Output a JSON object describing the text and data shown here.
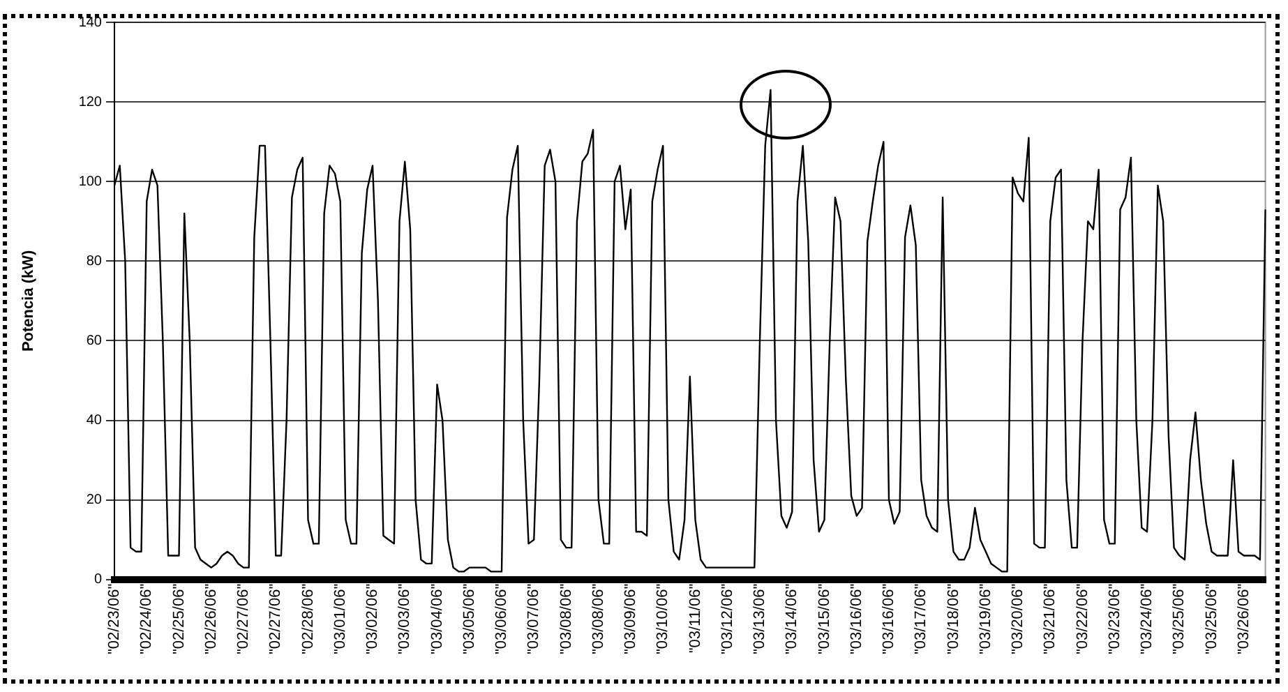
{
  "chart_data": {
    "type": "line",
    "ylabel": "Potencia (kW)",
    "categories": [
      "\"02/23/06\"",
      null,
      null,
      null,
      null,
      null,
      "\"02/24/06\"",
      null,
      null,
      null,
      null,
      null,
      "\"02/25/06\"",
      null,
      null,
      null,
      null,
      null,
      "\"02/26/06\"",
      null,
      null,
      null,
      null,
      null,
      "\"02/27/06\"",
      null,
      null,
      null,
      null,
      null,
      "\"02/27/06\"",
      null,
      null,
      null,
      null,
      null,
      "\"02/28/06\"",
      null,
      null,
      null,
      null,
      null,
      "\"03/01/06\"",
      null,
      null,
      null,
      null,
      null,
      "\"03/02/06\"",
      null,
      null,
      null,
      null,
      null,
      "\"03/03/06\"",
      null,
      null,
      null,
      null,
      null,
      "\"03/04/06\"",
      null,
      null,
      null,
      null,
      null,
      "\"03/05/06\"",
      null,
      null,
      null,
      null,
      null,
      "\"03/06/06\"",
      null,
      null,
      null,
      null,
      null,
      "\"03/07/06\"",
      null,
      null,
      null,
      null,
      null,
      "\"03/08/06\"",
      null,
      null,
      null,
      null,
      null,
      "\"03/08/06\"",
      null,
      null,
      null,
      null,
      null,
      "\"03/09/06\"",
      null,
      null,
      null,
      null,
      null,
      "\"03/10/06\"",
      null,
      null,
      null,
      null,
      null,
      "\"03/11/06\"",
      null,
      null,
      null,
      null,
      null,
      "\"03/12/06\"",
      null,
      null,
      null,
      null,
      null,
      "\"03/13/06\"",
      null,
      null,
      null,
      null,
      null,
      "\"03/14/06\"",
      null,
      null,
      null,
      null,
      null,
      "\"03/15/06\"",
      null,
      null,
      null,
      null,
      null,
      "\"03/16/06\"",
      null,
      null,
      null,
      null,
      null,
      "\"03/16/06\"",
      null,
      null,
      null,
      null,
      null,
      "\"03/17/06\"",
      null,
      null,
      null,
      null,
      null,
      "\"03/18/06\"",
      null,
      null,
      null,
      null,
      null,
      "\"03/19/06\"",
      null,
      null,
      null,
      null,
      null,
      "\"03/20/06\"",
      null,
      null,
      null,
      null,
      null,
      "\"03/21/06\"",
      null,
      null,
      null,
      null,
      null,
      "\"03/22/06\"",
      null,
      null,
      null,
      null,
      null,
      "\"03/23/06\"",
      null,
      null,
      null,
      null,
      null,
      "\"03/24/06\"",
      null,
      null,
      null,
      null,
      null,
      "\"03/25/06\"",
      null,
      null,
      null,
      null,
      null,
      "\"03/25/06\"",
      null,
      null,
      null,
      null,
      null,
      "\"03/26/06\"",
      null,
      null,
      null,
      null
    ],
    "ylim": [
      0,
      140
    ],
    "yticks": [
      0,
      20,
      40,
      60,
      80,
      100,
      120,
      140
    ],
    "grid": "y",
    "legend": false,
    "marker": "none",
    "line_style": "solid",
    "series": [
      {
        "color": "#000000",
        "values": [
          99,
          104,
          80,
          8,
          7,
          7,
          95,
          103,
          99,
          60,
          6,
          6,
          6,
          92,
          60,
          8,
          5,
          4,
          3,
          4,
          6,
          7,
          6,
          4,
          3,
          3,
          86,
          109,
          109,
          60,
          6,
          6,
          40,
          96,
          103,
          106,
          15,
          9,
          9,
          92,
          104,
          102,
          95,
          15,
          9,
          9,
          82,
          98,
          104,
          70,
          11,
          10,
          9,
          90,
          105,
          88,
          20,
          5,
          4,
          4,
          49,
          40,
          10,
          3,
          2,
          2,
          3,
          3,
          3,
          3,
          2,
          2,
          2,
          91,
          103,
          109,
          40,
          9,
          10,
          50,
          104,
          108,
          100,
          10,
          8,
          8,
          90,
          105,
          107,
          113,
          20,
          9,
          9,
          100,
          104,
          88,
          98,
          12,
          12,
          11,
          95,
          103,
          109,
          20,
          7,
          5,
          15,
          51,
          15,
          5,
          3,
          3,
          3,
          3,
          3,
          3,
          3,
          3,
          3,
          3,
          60,
          109,
          123,
          40,
          16,
          13,
          17,
          95,
          109,
          85,
          30,
          12,
          15,
          60,
          96,
          90,
          50,
          21,
          16,
          18,
          85,
          95,
          104,
          110,
          20,
          14,
          17,
          86,
          94,
          84,
          25,
          16,
          13,
          12,
          96,
          20,
          7,
          5,
          5,
          8,
          18,
          10,
          7,
          4,
          3,
          2,
          2,
          101,
          97,
          95,
          111,
          9,
          8,
          8,
          90,
          101,
          103,
          25,
          8,
          8,
          60,
          90,
          88,
          103,
          15,
          9,
          9,
          93,
          96,
          106,
          40,
          13,
          12,
          40,
          99,
          90,
          36,
          8,
          6,
          5,
          30,
          42,
          25,
          14,
          7,
          6,
          6,
          6,
          30,
          7,
          6,
          6,
          6,
          5,
          93
        ]
      }
    ]
  }
}
